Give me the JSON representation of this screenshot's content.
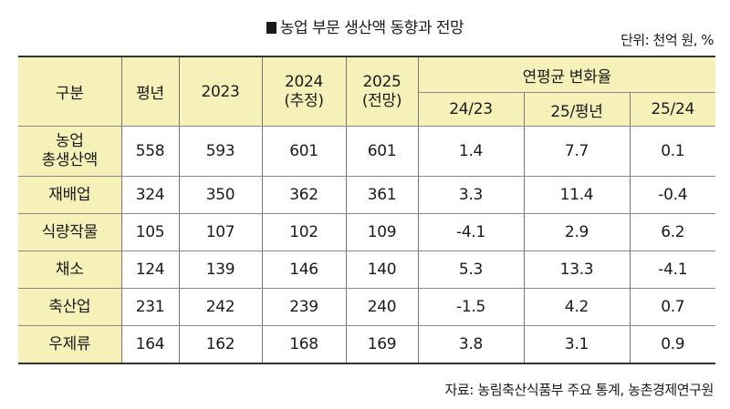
{
  "title": "농업 부문 생산액 동향과 전망",
  "unit_note": "단위: 천억 원, %",
  "headers": {
    "category": "구분",
    "avg": "평년",
    "y2023": "2023",
    "y2024": "2024",
    "y2024_sub": "(추정)",
    "y2025": "2025",
    "y2025_sub": "(전망)",
    "change_group": "연평균 변화율",
    "change_cols": [
      "24/23",
      "25/평년",
      "25/24"
    ]
  },
  "rows": [
    {
      "label_line1": "농업",
      "label_line2": "총생산액",
      "values": [
        "558",
        "593",
        "601",
        "601",
        "1.4",
        "7.7",
        "0.1"
      ]
    },
    {
      "label_line1": "재배업",
      "label_line2": "",
      "values": [
        "324",
        "350",
        "362",
        "361",
        "3.3",
        "11.4",
        "-0.4"
      ]
    },
    {
      "label_line1": "식량작물",
      "label_line2": "",
      "values": [
        "105",
        "107",
        "102",
        "109",
        "-4.1",
        "2.9",
        "6.2"
      ]
    },
    {
      "label_line1": "채소",
      "label_line2": "",
      "values": [
        "124",
        "139",
        "146",
        "140",
        "5.3",
        "13.3",
        "-4.1"
      ]
    },
    {
      "label_line1": "축산업",
      "label_line2": "",
      "values": [
        "231",
        "242",
        "239",
        "240",
        "-1.5",
        "4.2",
        "0.7"
      ]
    },
    {
      "label_line1": "우제류",
      "label_line2": "",
      "values": [
        "164",
        "162",
        "168",
        "169",
        "3.8",
        "3.1",
        "0.9"
      ]
    }
  ],
  "source": "자료: 농림축산식품부 주요 통계, 농촌경제연구원",
  "colors": {
    "header_bg": "#f5f1b9",
    "text": "#1a1a1a"
  }
}
